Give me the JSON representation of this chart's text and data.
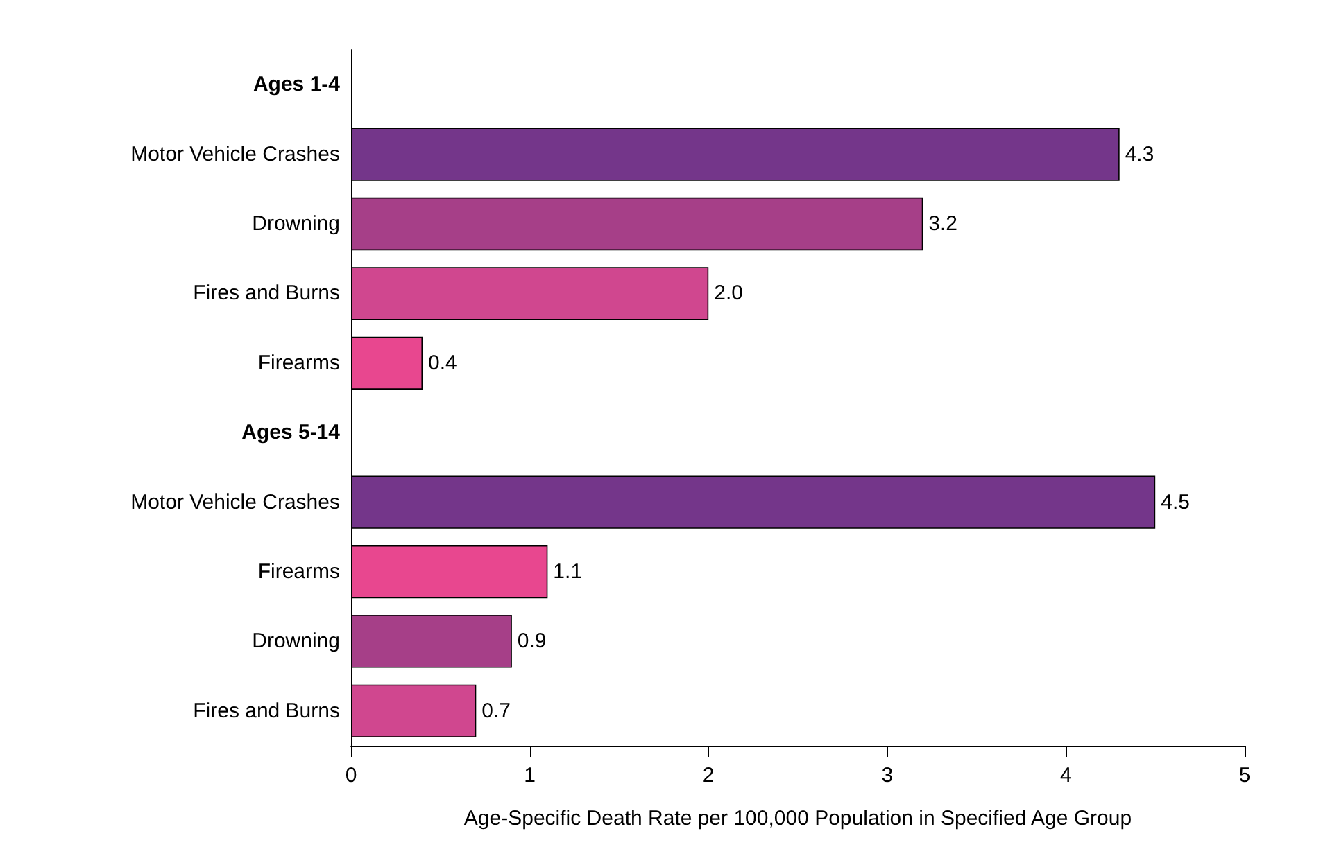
{
  "chart_data": {
    "type": "bar",
    "orientation": "horizontal",
    "xlabel": "Age-Specific Death Rate per 100,000 Population in Specified Age Group",
    "categories": [
      "Ages 1-4",
      "Motor Vehicle Crashes",
      "Drowning",
      "Fires and Burns",
      "Firearms",
      "Ages 5-14",
      "Motor Vehicle Crashes",
      "Firearms",
      "Drowning",
      "Fires and Burns"
    ],
    "values": [
      null,
      4.3,
      3.2,
      2.0,
      0.4,
      null,
      4.5,
      1.1,
      0.9,
      0.7
    ],
    "value_labels": [
      null,
      "4.3",
      "3.2",
      "2.0",
      "0.4",
      null,
      "4.5",
      "1.1",
      "0.9",
      "0.7"
    ],
    "colors": [
      "#74368a",
      "#74368a",
      "#a63f88",
      "#d0478f",
      "#e8478f",
      "#74368a",
      "#74368a",
      "#e8478f",
      "#a63f88",
      "#d0478f"
    ],
    "xlim": [
      0,
      5
    ],
    "xticks": [
      0,
      1,
      2,
      3,
      4,
      5
    ],
    "grid": false
  }
}
